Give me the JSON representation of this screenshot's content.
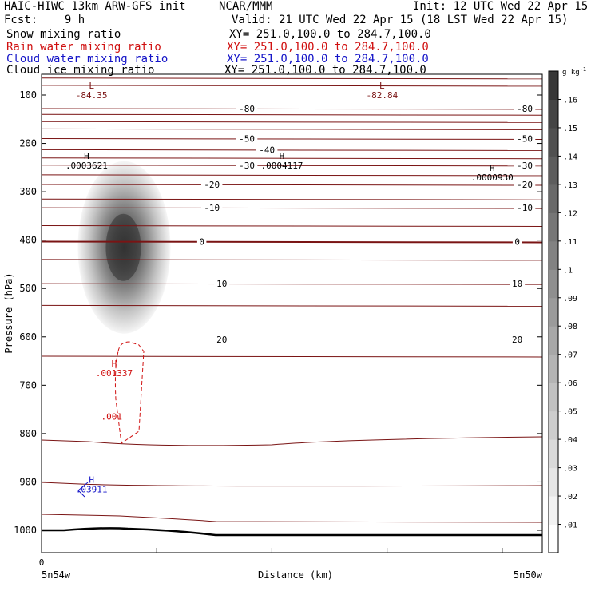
{
  "header": {
    "model": "HAIC-HIWC 13km ARW-GFS init",
    "org": "NCAR/MMM",
    "init": "Init: 12 UTC Wed 22 Apr 15",
    "fcst": "Fcst:    9 h",
    "valid": "Valid: 21 UTC Wed 22 Apr 15 (18 LST Wed 22 Apr 15)"
  },
  "fields": [
    {
      "name": "Snow mixing ratio",
      "xy": "XY= 251.0,100.0 to 284.7,100.0",
      "color": "#000000"
    },
    {
      "name": "Rain water mixing ratio",
      "xy": "XY= 251.0,100.0 to 284.7,100.0",
      "color": "#d01010"
    },
    {
      "name": "Cloud water mixing ratio",
      "xy": "XY= 251.0,100.0 to 284.7,100.0",
      "color": "#1414c8"
    },
    {
      "name": "Cloud ice mixing ratio",
      "xy": "XY= 251.0,100.0 to 284.7,100.0",
      "color": "#000000"
    }
  ],
  "chart_data": {
    "type": "heatmap",
    "xlabel": "Distance (km)",
    "ylabel": "Pressure (hPa)",
    "x_tick_zero": "0",
    "x_left_label": "5n54w",
    "x_right_label": "5n50w",
    "y_ticks": [
      100,
      200,
      300,
      400,
      500,
      600,
      700,
      800,
      900,
      1000
    ],
    "ylim": [
      1050,
      50
    ],
    "xlim": [
      0,
      100
    ],
    "colorbar": {
      "unit": "g kg",
      "unit_exp": "-1",
      "levels": [
        ".01",
        ".02",
        ".03",
        ".04",
        ".05",
        ".06",
        ".07",
        ".08",
        ".09",
        ".1",
        ".11",
        ".12",
        ".13",
        ".14",
        ".15",
        ".16"
      ]
    },
    "temperature_contours": [
      {
        "t": -80,
        "labels": [
          {
            "x": 41,
            "text": "-80"
          },
          {
            "x": 96.5,
            "text": "-80"
          }
        ]
      },
      {
        "t": -50,
        "labels": [
          {
            "x": 41,
            "text": "-50"
          },
          {
            "x": 96.5,
            "text": "-50"
          }
        ]
      },
      {
        "t": -40,
        "labels": [
          {
            "x": 45,
            "text": "-40"
          }
        ]
      },
      {
        "t": -30,
        "labels": [
          {
            "x": 41,
            "text": "-30"
          },
          {
            "x": 96.5,
            "text": "-30"
          }
        ]
      },
      {
        "t": -20,
        "labels": [
          {
            "x": 34,
            "text": "-20"
          },
          {
            "x": 96.5,
            "text": "-20"
          }
        ]
      },
      {
        "t": -10,
        "labels": [
          {
            "x": 34,
            "text": "-10"
          },
          {
            "x": 96.5,
            "text": "-10"
          }
        ]
      },
      {
        "t": 0,
        "labels": [
          {
            "x": 32,
            "text": "0"
          },
          {
            "x": 95,
            "text": "0"
          }
        ]
      },
      {
        "t": 10,
        "labels": [
          {
            "x": 36,
            "text": "10"
          },
          {
            "x": 95,
            "text": "10"
          }
        ]
      },
      {
        "t": 20,
        "labels": [
          {
            "x": 36,
            "text": "20"
          },
          {
            "x": 95,
            "text": "20"
          }
        ]
      }
    ],
    "extrema": [
      {
        "kind": "L",
        "value": "-84.35",
        "x": 10,
        "p": 100,
        "color": "#7a1414"
      },
      {
        "kind": "L",
        "value": "-82.84",
        "x": 68,
        "p": 100,
        "color": "#7a1414"
      },
      {
        "kind": "H",
        "value": ".0003621",
        "x": 9,
        "p": 245,
        "color": "#000000"
      },
      {
        "kind": "H",
        "value": ".0004117",
        "x": 48,
        "p": 245,
        "color": "#000000"
      },
      {
        "kind": "H",
        "value": ".0000930",
        "x": 90,
        "p": 270,
        "color": "#000000"
      },
      {
        "kind": "H",
        "value": ".001337",
        "x": 14.5,
        "p": 675,
        "color": "#d01010"
      },
      {
        "kind": "H",
        "value": ".03911",
        "x": 10,
        "p": 915,
        "color": "#1414c8"
      }
    ],
    "contour_labels": [
      {
        "value": ".001",
        "x": 14,
        "p": 765,
        "color": "#d01010"
      }
    ],
    "snow_max": {
      "x": 16.5,
      "p": 415,
      "value": 0.16
    }
  }
}
